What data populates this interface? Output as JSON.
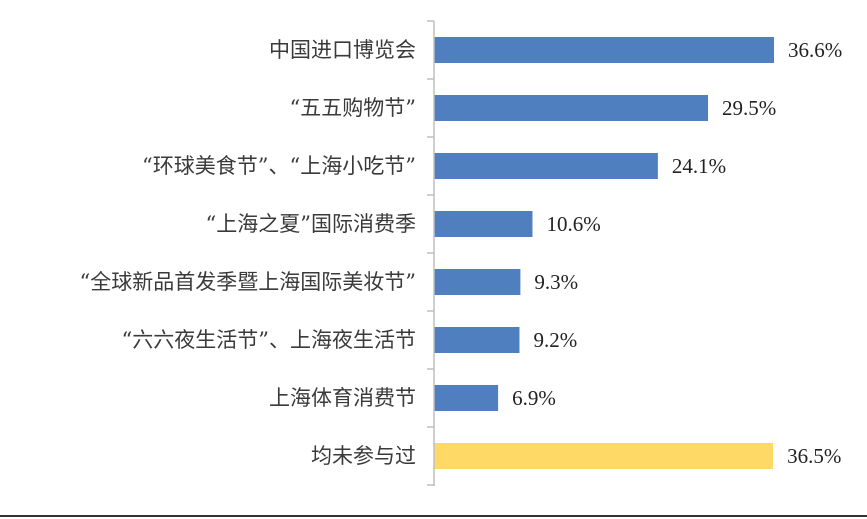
{
  "chart_data": {
    "type": "bar",
    "orientation": "horizontal",
    "categories": [
      "中国进口博览会",
      "“五五购物节”",
      "“环球美食节”、“上海小吃节”",
      "“上海之夏”国际消费季",
      "“全球新品首发季暨上海国际美妆节”",
      "“六六夜生活节”、上海夜生活节",
      "上海体育消费节",
      "均未参与过"
    ],
    "values": [
      36.6,
      29.5,
      24.1,
      10.6,
      9.3,
      9.2,
      6.9,
      36.5
    ],
    "value_labels": [
      "36.6%",
      "29.5%",
      "24.1%",
      "10.6%",
      "9.3%",
      "9.2%",
      "6.9%",
      "36.5%"
    ],
    "unit": "%",
    "xlim": [
      0,
      40
    ],
    "grid": false,
    "legend": "none",
    "colors": [
      "#4f7fbe",
      "#4f7fbe",
      "#4f7fbe",
      "#4f7fbe",
      "#4f7fbe",
      "#4f7fbe",
      "#4f7fbe",
      "#ffd966"
    ]
  }
}
